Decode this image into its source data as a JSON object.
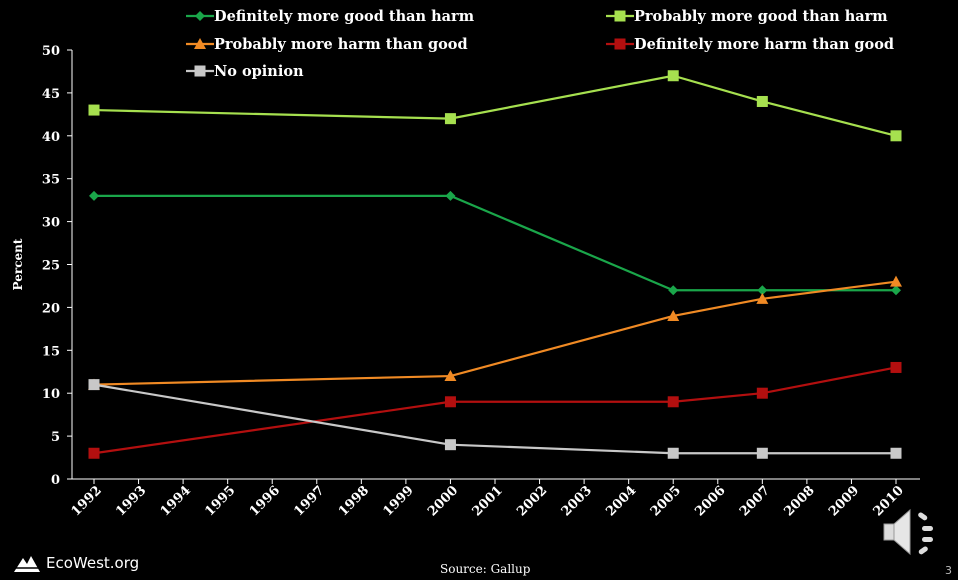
{
  "chart_data": {
    "type": "line",
    "title": "",
    "xlabel": "",
    "ylabel": "Percent",
    "ylim": [
      0,
      50
    ],
    "yticks": [
      0,
      5,
      10,
      15,
      20,
      25,
      30,
      35,
      40,
      45,
      50
    ],
    "xticks": [
      1992,
      1993,
      1994,
      1995,
      1996,
      1997,
      1998,
      1999,
      2000,
      2001,
      2002,
      2003,
      2004,
      2005,
      2006,
      2007,
      2008,
      2009,
      2010
    ],
    "x": [
      1992,
      2000,
      2005,
      2007,
      2010
    ],
    "grid": false,
    "legend_position": "top",
    "series": [
      {
        "name": "Definitely more good than harm",
        "values": [
          33,
          33,
          22,
          22,
          22
        ],
        "color": "#1aa64a",
        "marker": "diamond"
      },
      {
        "name": "Probably more good than harm",
        "values": [
          43,
          42,
          47,
          44,
          40
        ],
        "color": "#a6e04f",
        "marker": "square"
      },
      {
        "name": "Probably more harm than good",
        "values": [
          11,
          12,
          19,
          21,
          23
        ],
        "color": "#f08a24",
        "marker": "triangle"
      },
      {
        "name": "Definitely more harm than good",
        "values": [
          3,
          9,
          9,
          10,
          13
        ],
        "color": "#b30f0f",
        "marker": "square"
      },
      {
        "name": "No opinion",
        "values": [
          11,
          4,
          3,
          3,
          3
        ],
        "color": "#c8c8c8",
        "marker": "square"
      }
    ]
  },
  "footer": {
    "source": "Source: Gallup",
    "logo_text": "EcoWest.org",
    "page_number": "3",
    "speaker_icon": "speaker-icon"
  }
}
